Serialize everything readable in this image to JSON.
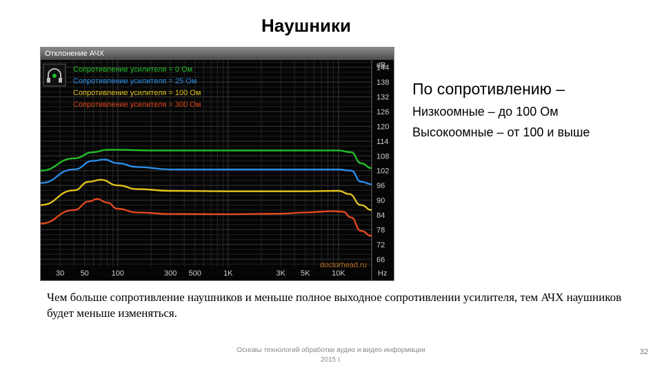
{
  "slide": {
    "title": "Наушники",
    "side_title": "По сопротивлению –",
    "side_lines": [
      "Низкоомные – до 100 Ом",
      "Высокоомные – от 100 и выше"
    ],
    "body": "Чем больше сопротивление наушников и меньше полное выходное сопротивлении усилителя, тем АЧХ наушников будет меньше изменяться.",
    "footer_line1": "Основы технологий обработки аудио и видео информации",
    "footer_line2": "2015 г.",
    "page_number": "32"
  },
  "chart_data": {
    "type": "line",
    "title": "Отклонение АЧХ",
    "watermark": "doctorhead.ru",
    "y_unit": "dB",
    "x_unit": "Hz",
    "xlim": [
      20,
      20000
    ],
    "ylim": [
      63,
      147
    ],
    "x_scale": "log",
    "grid": true,
    "legend_position": "top-left",
    "x_ticks": [
      {
        "value": 30,
        "label": "30"
      },
      {
        "value": 50,
        "label": "50"
      },
      {
        "value": 100,
        "label": "100"
      },
      {
        "value": 300,
        "label": "300"
      },
      {
        "value": 500,
        "label": "500"
      },
      {
        "value": 1000,
        "label": "1K"
      },
      {
        "value": 3000,
        "label": "3K"
      },
      {
        "value": 5000,
        "label": "5K"
      },
      {
        "value": 10000,
        "label": "10K"
      }
    ],
    "y_ticks": [
      {
        "value": 144,
        "label": "144"
      },
      {
        "value": 138,
        "label": "138"
      },
      {
        "value": 132,
        "label": "132"
      },
      {
        "value": 126,
        "label": "126"
      },
      {
        "value": 120,
        "label": "120"
      },
      {
        "value": 114,
        "label": "114"
      },
      {
        "value": 108,
        "label": "108"
      },
      {
        "value": 102,
        "label": "102"
      },
      {
        "value": 96,
        "label": "96"
      },
      {
        "value": 90,
        "label": "90"
      },
      {
        "value": 84,
        "label": "84"
      },
      {
        "value": 78,
        "label": "78"
      },
      {
        "value": 72,
        "label": "72"
      },
      {
        "value": 66,
        "label": "66"
      }
    ],
    "series": [
      {
        "name": "Сопротивление усилителя = 0 Ом",
        "color": "#22c22a",
        "points": [
          [
            20,
            102
          ],
          [
            40,
            107
          ],
          [
            60,
            109.5
          ],
          [
            80,
            110.5
          ],
          [
            100,
            110.5
          ],
          [
            200,
            110.2
          ],
          [
            1000,
            110.2
          ],
          [
            5000,
            110.2
          ],
          [
            10000,
            110.2
          ],
          [
            13000,
            109.5
          ],
          [
            16000,
            105
          ],
          [
            20000,
            103
          ]
        ]
      },
      {
        "name": "Сопротивление усилителя = 25 Ом",
        "color": "#2a8ee8",
        "points": [
          [
            20,
            97
          ],
          [
            40,
            102.5
          ],
          [
            60,
            106
          ],
          [
            75,
            106.5
          ],
          [
            100,
            105
          ],
          [
            150,
            103.5
          ],
          [
            300,
            102.5
          ],
          [
            1000,
            102.5
          ],
          [
            5000,
            102.5
          ],
          [
            10000,
            102.5
          ],
          [
            13000,
            102
          ],
          [
            16000,
            97.5
          ],
          [
            20000,
            96.5
          ]
        ]
      },
      {
        "name": "Сопротивление усилителя = 100 Ом",
        "color": "#e2c31e",
        "points": [
          [
            20,
            88
          ],
          [
            40,
            94
          ],
          [
            55,
            97.5
          ],
          [
            70,
            98.3
          ],
          [
            100,
            96
          ],
          [
            150,
            94.5
          ],
          [
            300,
            93.8
          ],
          [
            1000,
            93.6
          ],
          [
            5000,
            93.6
          ],
          [
            10000,
            93.8
          ],
          [
            12500,
            92.5
          ],
          [
            16000,
            88
          ],
          [
            20000,
            86
          ]
        ]
      },
      {
        "name": "Сопротивление усилителя = 300 Ом",
        "color": "#e4481e",
        "points": [
          [
            20,
            80.5
          ],
          [
            40,
            86
          ],
          [
            55,
            89.5
          ],
          [
            65,
            90.5
          ],
          [
            80,
            89
          ],
          [
            100,
            86.5
          ],
          [
            150,
            85
          ],
          [
            300,
            84.4
          ],
          [
            1000,
            84.3
          ],
          [
            3000,
            84.5
          ],
          [
            5000,
            85
          ],
          [
            9000,
            85.5
          ],
          [
            11000,
            85.3
          ],
          [
            13000,
            83
          ],
          [
            16000,
            77.5
          ],
          [
            20000,
            75.5
          ]
        ]
      }
    ]
  }
}
